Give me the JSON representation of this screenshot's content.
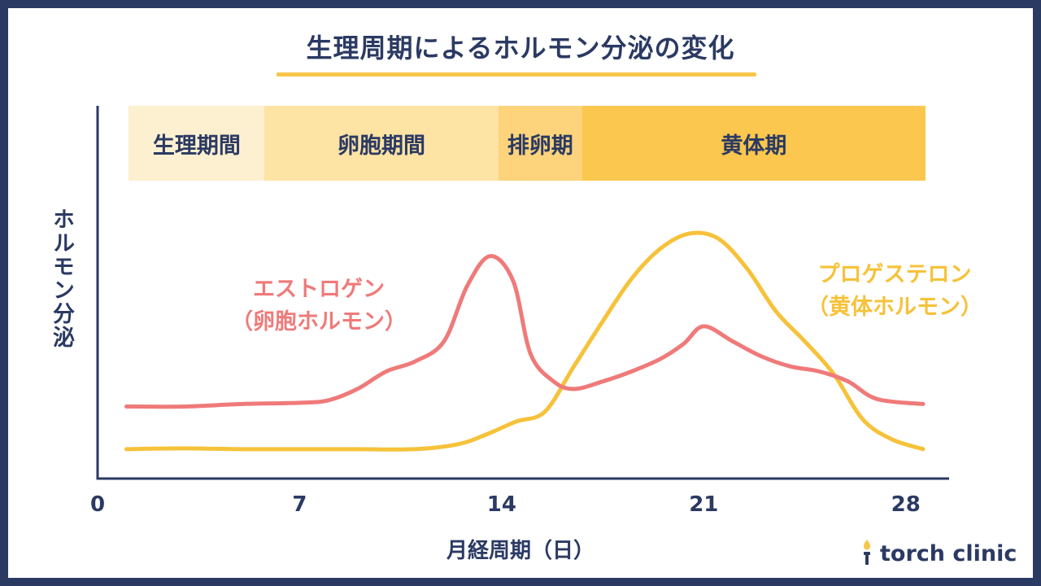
{
  "title": "生理周期によるホルモン分泌の変化",
  "phases": [
    {
      "label": "生理期間",
      "start": 1,
      "end": 5.7,
      "color": "#fdf0d0"
    },
    {
      "label": "卵胞期間",
      "start": 5.7,
      "end": 13.8,
      "color": "#fde3a4"
    },
    {
      "label": "排卵期",
      "start": 13.8,
      "end": 16.7,
      "color": "#fdd37b"
    },
    {
      "label": "黄体期",
      "start": 16.7,
      "end": 28.6,
      "color": "#fbc74e"
    }
  ],
  "series_labels": {
    "estrogen": {
      "name": "エストロゲン",
      "sub": "（卵胞ホルモン）",
      "color": "#ef7a7a"
    },
    "progesterone": {
      "name": "プロゲステロン",
      "sub": "（黄体ホルモン）",
      "color": "#f6c23a"
    }
  },
  "logo": "torch clinic",
  "chart_data": {
    "type": "line",
    "title": "生理周期によるホルモン分泌の変化",
    "xlabel": "月経周期（日）",
    "ylabel": "ホルモン分泌",
    "xlim": [
      0,
      29.5
    ],
    "ylim": [
      0,
      100
    ],
    "xticks": [
      0,
      7,
      14,
      21,
      28
    ],
    "series": [
      {
        "name": "エストロゲン",
        "color": "#ef7a7a",
        "x": [
          1,
          3,
          5,
          7,
          8,
          9,
          10,
          11,
          12,
          12.8,
          13.6,
          14.4,
          15,
          15.8,
          16.5,
          17.5,
          18.5,
          19.5,
          20.3,
          21,
          22,
          23,
          24,
          25,
          26,
          27,
          28.6
        ],
        "y": [
          19,
          19,
          20,
          20.5,
          21.5,
          26,
          33,
          37,
          45,
          67,
          79,
          69,
          40,
          29,
          26,
          29,
          33,
          38,
          44,
          51,
          45,
          39,
          35,
          33,
          29,
          22,
          20
        ]
      },
      {
        "name": "プロゲステロン",
        "color": "#f6c23a",
        "x": [
          1,
          3,
          5,
          7,
          9,
          11,
          12.5,
          13.5,
          14.5,
          15.5,
          16.5,
          17.5,
          18.5,
          19.5,
          20.5,
          21.5,
          22.5,
          23.5,
          24.5,
          25.5,
          26.5,
          27.5,
          28.6
        ],
        "y": [
          2,
          2.3,
          2,
          2,
          2,
          2,
          4,
          8,
          13,
          17,
          35,
          53,
          70,
          82,
          88,
          86,
          74,
          57,
          45,
          32,
          14,
          6,
          2
        ]
      }
    ]
  }
}
